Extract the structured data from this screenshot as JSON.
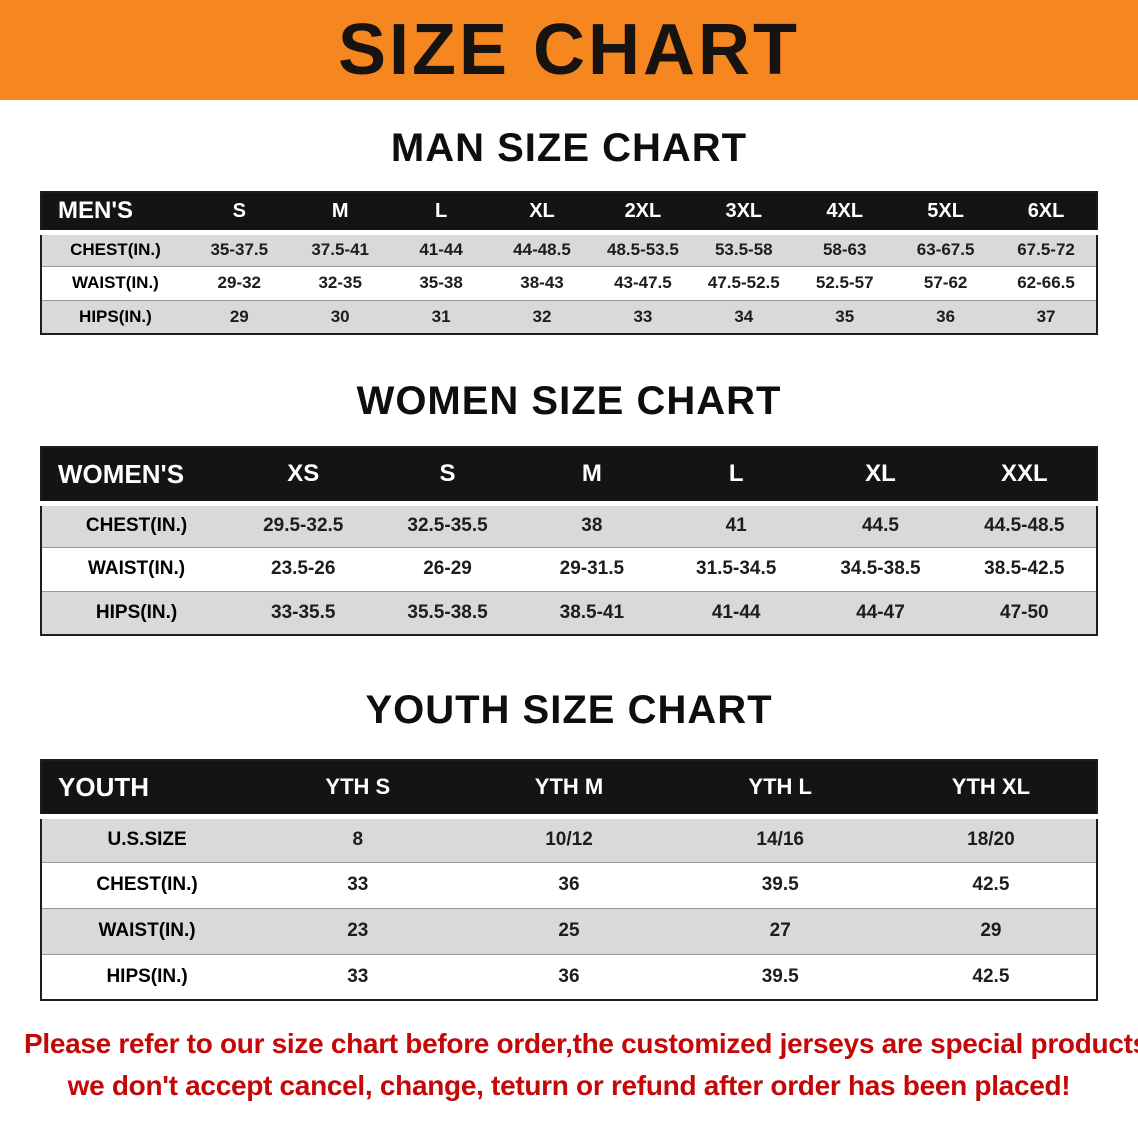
{
  "banner": {
    "title": "SIZE CHART",
    "bg_color": "#F6861F"
  },
  "sections": [
    {
      "heading": "MAN SIZE CHART",
      "table": {
        "header": [
          "MEN'S",
          "S",
          "M",
          "L",
          "XL",
          "2XL",
          "3XL",
          "4XL",
          "5XL",
          "6XL"
        ],
        "rows": [
          {
            "label": "CHEST(IN.)",
            "values": [
              "35-37.5",
              "37.5-41",
              "41-44",
              "44-48.5",
              "48.5-53.5",
              "53.5-58",
              "58-63",
              "63-67.5",
              "67.5-72"
            ]
          },
          {
            "label": "WAIST(IN.)",
            "values": [
              "29-32",
              "32-35",
              "35-38",
              "38-43",
              "43-47.5",
              "47.5-52.5",
              "52.5-57",
              "57-62",
              "62-66.5"
            ]
          },
          {
            "label": "HIPS(IN.)",
            "values": [
              "29",
              "30",
              "31",
              "32",
              "33",
              "34",
              "35",
              "36",
              "37"
            ]
          }
        ]
      }
    },
    {
      "heading": "WOMEN SIZE CHART",
      "table": {
        "header": [
          "WOMEN'S",
          "XS",
          "S",
          "M",
          "L",
          "XL",
          "XXL"
        ],
        "rows": [
          {
            "label": "CHEST(IN.)",
            "values": [
              "29.5-32.5",
              "32.5-35.5",
              "38",
              "41",
              "44.5",
              "44.5-48.5"
            ]
          },
          {
            "label": "WAIST(IN.)",
            "values": [
              "23.5-26",
              "26-29",
              "29-31.5",
              "31.5-34.5",
              "34.5-38.5",
              "38.5-42.5"
            ]
          },
          {
            "label": "HIPS(IN.)",
            "values": [
              "33-35.5",
              "35.5-38.5",
              "38.5-41",
              "41-44",
              "44-47",
              "47-50"
            ]
          }
        ]
      }
    },
    {
      "heading": "YOUTH SIZE CHART",
      "table": {
        "header": [
          "YOUTH",
          "YTH S",
          "YTH M",
          "YTH L",
          "YTH XL"
        ],
        "rows": [
          {
            "label": "U.S.SIZE",
            "values": [
              "8",
              "10/12",
              "14/16",
              "18/20"
            ]
          },
          {
            "label": "CHEST(IN.)",
            "values": [
              "33",
              "36",
              "39.5",
              "42.5"
            ]
          },
          {
            "label": "WAIST(IN.)",
            "values": [
              "23",
              "25",
              "27",
              "29"
            ]
          },
          {
            "label": "HIPS(IN.)",
            "values": [
              "33",
              "36",
              "39.5",
              "42.5"
            ]
          }
        ]
      }
    }
  ],
  "disclaimer": {
    "color": "#C40808",
    "lines": [
      "Please refer to our size chart before order,the customized jerseys are special products,",
      "we don't accept cancel, change, teturn or refund after order has been placed!"
    ]
  }
}
